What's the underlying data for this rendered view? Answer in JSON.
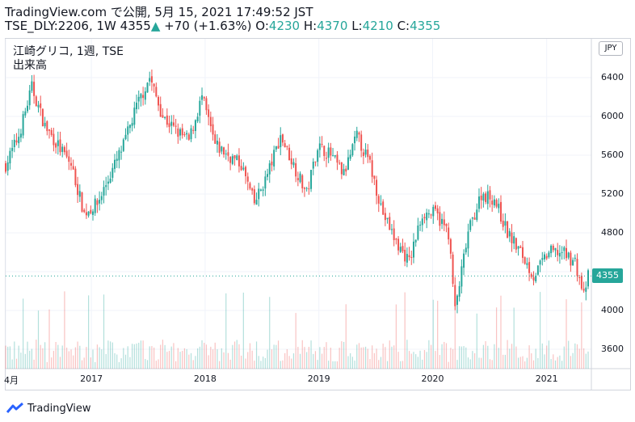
{
  "header": {
    "line1": "TradingView.com で公開, 5月 15, 2021 17:49:52 JST",
    "ticker_prefix": "TSE_DLY:2206, 1W 4355",
    "arrow": "▲",
    "change": "+70 (+1.63%)",
    "o_label": "O:",
    "o_value": "4230",
    "h_label": "H:",
    "h_value": "4370",
    "l_label": "L:",
    "l_value": "4210",
    "c_label": "C:",
    "c_value": "4355"
  },
  "legend": {
    "symbol": "江崎グリコ, 1週, TSE",
    "volume": "出来高"
  },
  "currency": "JPY",
  "brand": {
    "text": "TradingView",
    "logo": "tradingview-logo-icon"
  },
  "colors": {
    "up": "#26a69a",
    "down": "#ef5350",
    "grid": "#f0f3fa",
    "last_price_line": "#26a69a"
  },
  "chart_data": {
    "type": "candlestick",
    "title": "江崎グリコ, 1週, TSE",
    "ylim": [
      3400,
      6800
    ],
    "y_ticks": [
      3600,
      4000,
      4400,
      4800,
      5200,
      5600,
      6000,
      6400
    ],
    "y_tick_labels": [
      "3600",
      "4000",
      "",
      "4800",
      "5200",
      "5600",
      "6000",
      "6400"
    ],
    "x_ticks": [
      {
        "label": "4月",
        "date": "2016-04-01"
      },
      {
        "label": "2017",
        "date": "2017-01-01"
      },
      {
        "label": "2018",
        "date": "2018-01-01"
      },
      {
        "label": "2019",
        "date": "2019-01-01"
      },
      {
        "label": "2020",
        "date": "2020-01-01"
      },
      {
        "label": "2021",
        "date": "2021-01-01"
      }
    ],
    "x_start": "2016-04-01",
    "x_end": "2021-05-14",
    "last_price": 4355,
    "volume_series": "出来高",
    "price_path": [
      [
        "2016-04-01",
        5500
      ],
      [
        "2016-05-13",
        5800
      ],
      [
        "2016-06-24",
        6300
      ],
      [
        "2016-08-05",
        5900
      ],
      [
        "2016-09-16",
        5700
      ],
      [
        "2016-10-28",
        5500
      ],
      [
        "2016-12-09",
        5000
      ],
      [
        "2017-01-20",
        5100
      ],
      [
        "2017-03-03",
        5400
      ],
      [
        "2017-04-14",
        5700
      ],
      [
        "2017-05-26",
        6100
      ],
      [
        "2017-07-07",
        6400
      ],
      [
        "2017-08-18",
        6000
      ],
      [
        "2017-09-29",
        5850
      ],
      [
        "2017-11-10",
        5750
      ],
      [
        "2017-12-22",
        6200
      ],
      [
        "2018-02-02",
        5700
      ],
      [
        "2018-03-16",
        5600
      ],
      [
        "2018-04-27",
        5500
      ],
      [
        "2018-06-08",
        5100
      ],
      [
        "2018-07-20",
        5400
      ],
      [
        "2018-08-31",
        5800
      ],
      [
        "2018-10-12",
        5500
      ],
      [
        "2018-11-23",
        5200
      ],
      [
        "2018-12-28",
        5700
      ],
      [
        "2019-02-08",
        5600
      ],
      [
        "2019-03-22",
        5400
      ],
      [
        "2019-05-03",
        5800
      ],
      [
        "2019-06-14",
        5500
      ],
      [
        "2019-07-26",
        5000
      ],
      [
        "2019-09-06",
        4700
      ],
      [
        "2019-10-18",
        4500
      ],
      [
        "2019-11-29",
        5000
      ],
      [
        "2020-01-10",
        5000
      ],
      [
        "2020-02-21",
        4800
      ],
      [
        "2020-03-13",
        4000
      ],
      [
        "2020-04-24",
        4800
      ],
      [
        "2020-06-05",
        5200
      ],
      [
        "2020-07-17",
        5150
      ],
      [
        "2020-08-28",
        4800
      ],
      [
        "2020-10-09",
        4600
      ],
      [
        "2020-11-20",
        4350
      ],
      [
        "2021-01-08",
        4600
      ],
      [
        "2021-02-19",
        4600
      ],
      [
        "2021-04-02",
        4500
      ],
      [
        "2021-04-30",
        4150
      ],
      [
        "2021-05-14",
        4355
      ]
    ],
    "approximate": true
  }
}
